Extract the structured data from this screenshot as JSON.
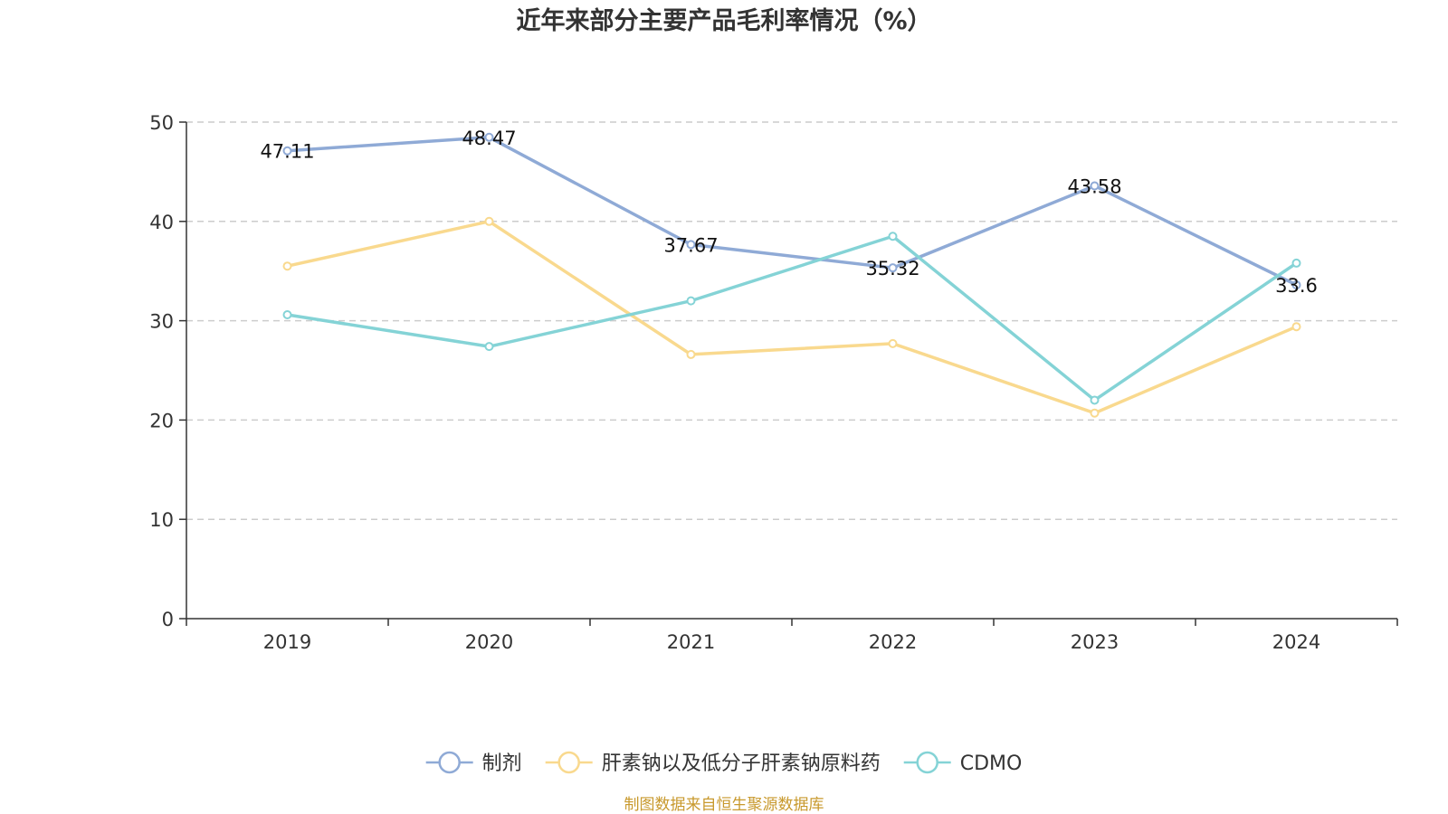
{
  "chart_data": {
    "type": "line",
    "title": "近年来部分主要产品毛利率情况（%）",
    "categories": [
      "2019",
      "2020",
      "2021",
      "2022",
      "2023",
      "2024"
    ],
    "ylim": [
      0,
      50
    ],
    "yticks": [
      "0",
      "10",
      "20",
      "30",
      "40",
      "50"
    ],
    "grid": true,
    "legend_position": "bottom",
    "series": [
      {
        "name": "制剂",
        "color": "#8faad6",
        "values": [
          47.11,
          48.47,
          37.67,
          35.32,
          43.58,
          33.6
        ],
        "labels": [
          "47.11",
          "48.47",
          "37.67",
          "35.32",
          "43.58",
          "33.6"
        ]
      },
      {
        "name": "肝素钠以及低分子肝素钠原料药",
        "color": "#f9d98e",
        "values": [
          35.5,
          40.0,
          26.6,
          27.7,
          20.7,
          29.4
        ]
      },
      {
        "name": "CDMO",
        "color": "#84d3d6",
        "values": [
          30.6,
          27.4,
          32.0,
          38.5,
          22.0,
          35.8
        ]
      }
    ],
    "source": "制图数据来自恒生聚源数据库"
  }
}
